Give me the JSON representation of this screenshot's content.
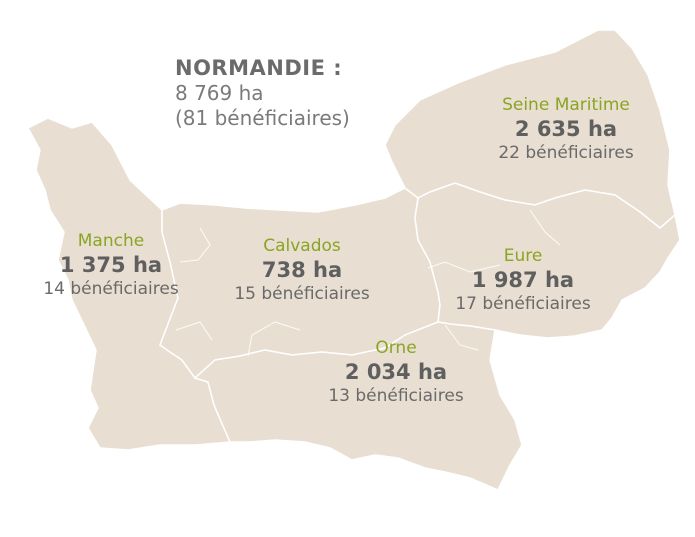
{
  "region": {
    "title": "NORMANDIE :",
    "area": "8 769 ha",
    "beneficiaries": "(81 bénéficiaires)"
  },
  "colors": {
    "land": "#e8ded2",
    "border": "#ffffff",
    "name": "#8aa523",
    "value": "#5f5f5f"
  },
  "departments": [
    {
      "key": "seine-maritime",
      "name": "Seine Maritime",
      "area": "2 635 ha",
      "beneficiaries": "22 bénéficiaires"
    },
    {
      "key": "manche",
      "name": "Manche",
      "area": "1 375 ha",
      "beneficiaries": "14 bénéficiaires"
    },
    {
      "key": "calvados",
      "name": "Calvados",
      "area": "738 ha",
      "beneficiaries": "15 bénéficiaires"
    },
    {
      "key": "eure",
      "name": "Eure",
      "area": "1 987 ha",
      "beneficiaries": "17 bénéficiaires"
    },
    {
      "key": "orne",
      "name": "Orne",
      "area": "2 034 ha",
      "beneficiaries": "13 bénéficiaires"
    }
  ]
}
